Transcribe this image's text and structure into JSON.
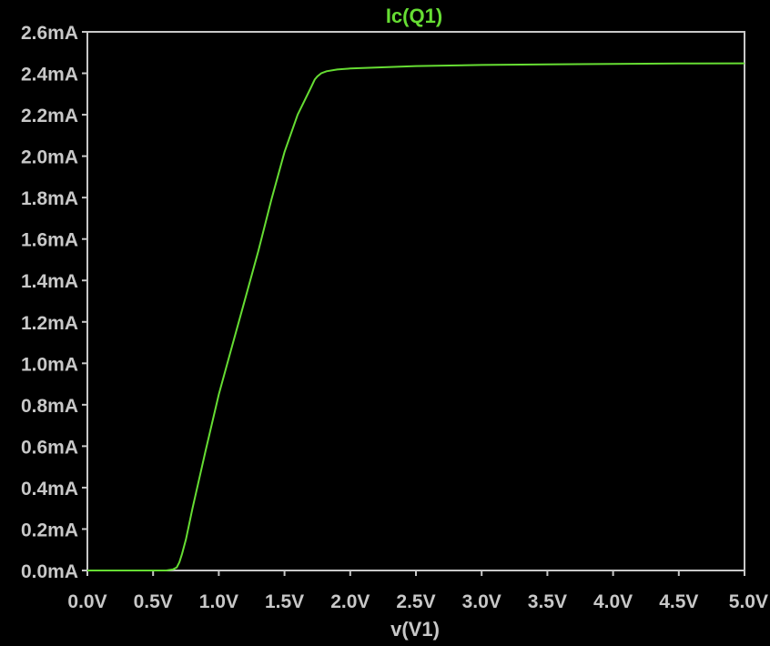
{
  "chart_data": {
    "type": "line",
    "title": "Ic(Q1)",
    "xlabel": "v(V1)",
    "ylabel": "",
    "xlim": [
      0,
      5
    ],
    "ylim": [
      0,
      2.6
    ],
    "x_unit": "V",
    "y_unit": "mA",
    "x_ticks": [
      "0.0V",
      "0.5V",
      "1.0V",
      "1.5V",
      "2.0V",
      "2.5V",
      "3.0V",
      "3.5V",
      "4.0V",
      "4.5V",
      "5.0V"
    ],
    "y_ticks": [
      "0.0mA",
      "0.2mA",
      "0.4mA",
      "0.6mA",
      "0.8mA",
      "1.0mA",
      "1.2mA",
      "1.4mA",
      "1.6mA",
      "1.8mA",
      "2.0mA",
      "2.2mA",
      "2.4mA",
      "2.6mA"
    ],
    "grid": false,
    "series": [
      {
        "x": [
          0.0,
          0.5,
          0.6,
          0.65,
          0.68,
          0.7,
          0.72,
          0.75,
          0.8,
          0.9,
          1.0,
          1.1,
          1.2,
          1.3,
          1.4,
          1.5,
          1.6,
          1.7,
          1.73,
          1.75,
          1.78,
          1.82,
          1.9,
          2.0,
          2.5,
          3.0,
          3.5,
          4.0,
          4.5,
          5.0
        ],
        "y": [
          0.0,
          0.0,
          0.0,
          0.005,
          0.015,
          0.04,
          0.08,
          0.15,
          0.3,
          0.58,
          0.85,
          1.08,
          1.31,
          1.54,
          1.79,
          2.02,
          2.2,
          2.33,
          2.37,
          2.385,
          2.4,
          2.41,
          2.418,
          2.423,
          2.435,
          2.44,
          2.443,
          2.445,
          2.447,
          2.448
        ]
      }
    ],
    "colors": {
      "background": "#000000",
      "trace": "#66dd33",
      "frame": "#c8c8c8",
      "text": "#c8c8c8",
      "title": "#66dd33"
    }
  }
}
